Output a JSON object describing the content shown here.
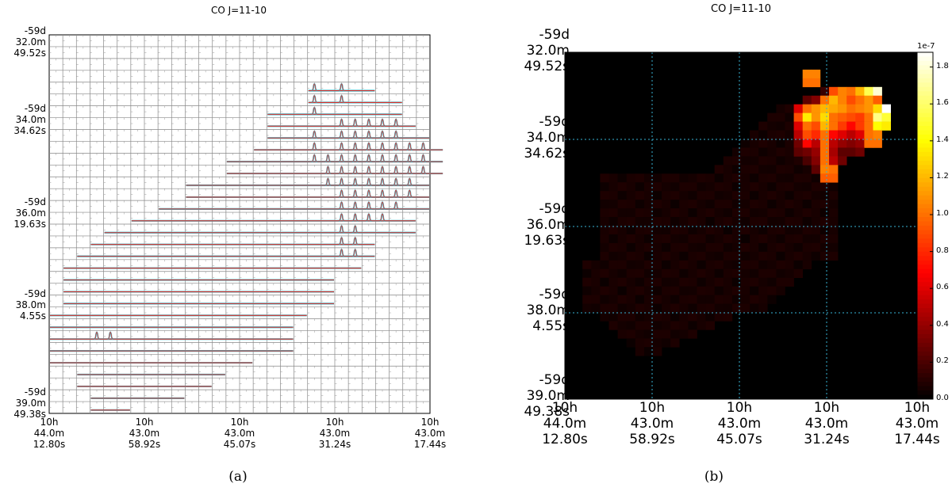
{
  "chart_data": [
    {
      "type": "grid-spectra",
      "title": "CO J=11-10",
      "caption": "(a)",
      "yticks": [
        "-59d\n32.0m\n49.52s",
        "-59d\n34.0m\n34.62s",
        "-59d\n36.0m\n19.63s",
        "-59d\n38.0m\n4.55s",
        "-59d\n39.0m\n49.38s"
      ],
      "xticks": [
        "10h\n44.0m\n12.80s",
        "10h\n43.0m\n58.92s",
        "10h\n43.0m\n45.07s",
        "10h\n43.0m\n31.24s",
        "10h\n43.0m\n17.44s"
      ],
      "grid": true,
      "rows": [
        {
          "row": 4,
          "col_start": 19,
          "col_end": 23,
          "peak_cols": [
            19,
            21
          ]
        },
        {
          "row": 5,
          "col_start": 19,
          "col_end": 25,
          "peak_cols": [
            19,
            21
          ]
        },
        {
          "row": 6,
          "col_start": 16,
          "col_end": 25,
          "peak_cols": [
            19
          ]
        },
        {
          "row": 7,
          "col_start": 16,
          "col_end": 26,
          "peak_cols": [
            21,
            22,
            23,
            24,
            25
          ]
        },
        {
          "row": 8,
          "col_start": 16,
          "col_end": 27,
          "peak_cols": [
            19,
            21,
            22,
            23,
            24,
            25
          ]
        },
        {
          "row": 9,
          "col_start": 15,
          "col_end": 28,
          "peak_cols": [
            19,
            21,
            22,
            23,
            24,
            25,
            26,
            27
          ]
        },
        {
          "row": 10,
          "col_start": 13,
          "col_end": 28,
          "peak_cols": [
            19,
            20,
            21,
            22,
            23,
            24,
            25,
            26,
            27
          ]
        },
        {
          "row": 11,
          "col_start": 13,
          "col_end": 28,
          "peak_cols": [
            20,
            21,
            22,
            23,
            24,
            25,
            26,
            27
          ]
        },
        {
          "row": 12,
          "col_start": 10,
          "col_end": 27,
          "peak_cols": [
            20,
            21,
            22,
            23,
            24,
            25,
            26
          ]
        },
        {
          "row": 13,
          "col_start": 10,
          "col_end": 27,
          "peak_cols": [
            21,
            22,
            23,
            24,
            25,
            26
          ]
        },
        {
          "row": 14,
          "col_start": 8,
          "col_end": 27,
          "peak_cols": [
            21,
            22,
            23,
            24,
            25
          ]
        },
        {
          "row": 15,
          "col_start": 6,
          "col_end": 26,
          "peak_cols": [
            21,
            22,
            23,
            24
          ]
        },
        {
          "row": 16,
          "col_start": 4,
          "col_end": 26,
          "peak_cols": [
            21,
            22
          ]
        },
        {
          "row": 17,
          "col_start": 3,
          "col_end": 23,
          "peak_cols": [
            21,
            22
          ]
        },
        {
          "row": 18,
          "col_start": 2,
          "col_end": 23,
          "peak_cols": [
            21,
            22
          ]
        },
        {
          "row": 19,
          "col_start": 1,
          "col_end": 22,
          "peak_cols": []
        },
        {
          "row": 20,
          "col_start": 1,
          "col_end": 20,
          "peak_cols": []
        },
        {
          "row": 21,
          "col_start": 1,
          "col_end": 20,
          "peak_cols": []
        },
        {
          "row": 22,
          "col_start": 1,
          "col_end": 20,
          "peak_cols": []
        },
        {
          "row": 23,
          "col_start": 0,
          "col_end": 18,
          "peak_cols": []
        },
        {
          "row": 24,
          "col_start": 0,
          "col_end": 17,
          "peak_cols": []
        },
        {
          "row": 25,
          "col_start": 0,
          "col_end": 17,
          "peak_cols": [
            3,
            4
          ]
        },
        {
          "row": 26,
          "col_start": 0,
          "col_end": 17,
          "peak_cols": []
        },
        {
          "row": 27,
          "col_start": 0,
          "col_end": 14,
          "peak_cols": []
        },
        {
          "row": 28,
          "col_start": 2,
          "col_end": 12,
          "peak_cols": []
        },
        {
          "row": 29,
          "col_start": 2,
          "col_end": 11,
          "peak_cols": []
        },
        {
          "row": 30,
          "col_start": 3,
          "col_end": 9,
          "peak_cols": []
        },
        {
          "row": 31,
          "col_start": 3,
          "col_end": 5,
          "peak_cols": []
        }
      ]
    },
    {
      "type": "heatmap",
      "title": "CO J=11-10",
      "caption": "(b)",
      "colormap": "hot",
      "colorbar_exponent": "1e-7",
      "colorbar_ticks": [
        "1.8",
        "1.6",
        "1.4",
        "1.2",
        "1.0",
        "0.8",
        "0.6",
        "0.4",
        "0.2",
        "0.0"
      ],
      "colorbar_range": [
        0.0,
        1.88
      ],
      "yticks": [
        "-59d\n32.0m\n49.52s",
        "-59d\n34.0m\n34.62s",
        "-59d\n36.0m\n19.63s",
        "-59d\n38.0m\n4.55s",
        "-59d\n39.0m\n49.38s"
      ],
      "xticks": [
        "10h\n44.0m\n12.80s",
        "10h\n43.0m\n58.92s",
        "10h\n43.0m\n45.07s",
        "10h\n43.0m\n31.24s",
        "10h\n43.0m\n17.44s"
      ],
      "grid": true,
      "bright_cells": [
        {
          "col": 27,
          "row": 2,
          "value": 1.05
        },
        {
          "col": 28,
          "row": 2,
          "value": 1.05
        },
        {
          "col": 27,
          "row": 3,
          "value": 1.0
        },
        {
          "col": 28,
          "row": 3,
          "value": 1.0
        },
        {
          "col": 29,
          "row": 4,
          "value": 0.15
        },
        {
          "col": 30,
          "row": 4,
          "value": 0.9
        },
        {
          "col": 31,
          "row": 4,
          "value": 1.05
        },
        {
          "col": 32,
          "row": 4,
          "value": 1.0
        },
        {
          "col": 33,
          "row": 4,
          "value": 1.2
        },
        {
          "col": 34,
          "row": 4,
          "value": 1.55
        },
        {
          "col": 35,
          "row": 4,
          "value": 1.8
        },
        {
          "col": 27,
          "row": 5,
          "value": 0.25
        },
        {
          "col": 28,
          "row": 5,
          "value": 0.35
        },
        {
          "col": 29,
          "row": 5,
          "value": 1.0
        },
        {
          "col": 30,
          "row": 5,
          "value": 1.2
        },
        {
          "col": 31,
          "row": 5,
          "value": 1.05
        },
        {
          "col": 32,
          "row": 5,
          "value": 0.9
        },
        {
          "col": 33,
          "row": 5,
          "value": 1.0
        },
        {
          "col": 34,
          "row": 5,
          "value": 1.1
        },
        {
          "col": 35,
          "row": 5,
          "value": 0.95
        },
        {
          "col": 26,
          "row": 6,
          "value": 0.6
        },
        {
          "col": 27,
          "row": 6,
          "value": 1.0
        },
        {
          "col": 28,
          "row": 6,
          "value": 1.1
        },
        {
          "col": 29,
          "row": 6,
          "value": 1.2
        },
        {
          "col": 30,
          "row": 6,
          "value": 1.15
        },
        {
          "col": 31,
          "row": 6,
          "value": 1.1
        },
        {
          "col": 32,
          "row": 6,
          "value": 1.0
        },
        {
          "col": 33,
          "row": 6,
          "value": 1.05
        },
        {
          "col": 34,
          "row": 6,
          "value": 1.1
        },
        {
          "col": 35,
          "row": 6,
          "value": 1.3
        },
        {
          "col": 36,
          "row": 6,
          "value": 1.88
        },
        {
          "col": 26,
          "row": 7,
          "value": 0.9
        },
        {
          "col": 27,
          "row": 7,
          "value": 1.35
        },
        {
          "col": 28,
          "row": 7,
          "value": 1.1
        },
        {
          "col": 29,
          "row": 7,
          "value": 1.3
        },
        {
          "col": 30,
          "row": 7,
          "value": 1.0
        },
        {
          "col": 31,
          "row": 7,
          "value": 0.95
        },
        {
          "col": 32,
          "row": 7,
          "value": 0.9
        },
        {
          "col": 33,
          "row": 7,
          "value": 0.85
        },
        {
          "col": 34,
          "row": 7,
          "value": 1.0
        },
        {
          "col": 35,
          "row": 7,
          "value": 1.65
        },
        {
          "col": 36,
          "row": 7,
          "value": 1.5
        },
        {
          "col": 26,
          "row": 8,
          "value": 0.6
        },
        {
          "col": 27,
          "row": 8,
          "value": 1.0
        },
        {
          "col": 28,
          "row": 8,
          "value": 0.9
        },
        {
          "col": 29,
          "row": 8,
          "value": 1.2
        },
        {
          "col": 30,
          "row": 8,
          "value": 1.0
        },
        {
          "col": 31,
          "row": 8,
          "value": 0.85
        },
        {
          "col": 32,
          "row": 8,
          "value": 0.7
        },
        {
          "col": 33,
          "row": 8,
          "value": 0.85
        },
        {
          "col": 34,
          "row": 8,
          "value": 1.0
        },
        {
          "col": 35,
          "row": 8,
          "value": 1.4
        },
        {
          "col": 36,
          "row": 8,
          "value": 1.35
        },
        {
          "col": 26,
          "row": 9,
          "value": 0.5
        },
        {
          "col": 27,
          "row": 9,
          "value": 0.9
        },
        {
          "col": 28,
          "row": 9,
          "value": 0.8
        },
        {
          "col": 29,
          "row": 9,
          "value": 1.0
        },
        {
          "col": 30,
          "row": 9,
          "value": 0.7
        },
        {
          "col": 31,
          "row": 9,
          "value": 0.6
        },
        {
          "col": 32,
          "row": 9,
          "value": 0.5
        },
        {
          "col": 33,
          "row": 9,
          "value": 0.6
        },
        {
          "col": 34,
          "row": 9,
          "value": 1.0
        },
        {
          "col": 35,
          "row": 9,
          "value": 1.05
        },
        {
          "col": 26,
          "row": 10,
          "value": 0.3
        },
        {
          "col": 27,
          "row": 10,
          "value": 0.7
        },
        {
          "col": 28,
          "row": 10,
          "value": 0.5
        },
        {
          "col": 29,
          "row": 10,
          "value": 1.0
        },
        {
          "col": 30,
          "row": 10,
          "value": 0.5
        },
        {
          "col": 31,
          "row": 10,
          "value": 0.4
        },
        {
          "col": 32,
          "row": 10,
          "value": 0.35
        },
        {
          "col": 33,
          "row": 10,
          "value": 0.4
        },
        {
          "col": 34,
          "row": 10,
          "value": 1.0
        },
        {
          "col": 35,
          "row": 10,
          "value": 1.0
        },
        {
          "col": 26,
          "row": 11,
          "value": 0.25
        },
        {
          "col": 27,
          "row": 11,
          "value": 0.3
        },
        {
          "col": 28,
          "row": 11,
          "value": 0.4
        },
        {
          "col": 29,
          "row": 11,
          "value": 1.0
        },
        {
          "col": 30,
          "row": 11,
          "value": 0.45
        },
        {
          "col": 31,
          "row": 11,
          "value": 0.25
        },
        {
          "col": 32,
          "row": 11,
          "value": 0.25
        },
        {
          "col": 33,
          "row": 11,
          "value": 0.3
        },
        {
          "col": 27,
          "row": 12,
          "value": 0.2
        },
        {
          "col": 28,
          "row": 12,
          "value": 0.35
        },
        {
          "col": 29,
          "row": 12,
          "value": 1.0
        },
        {
          "col": 30,
          "row": 12,
          "value": 0.5
        },
        {
          "col": 31,
          "row": 12,
          "value": 0.3
        },
        {
          "col": 28,
          "row": 13,
          "value": 0.25
        },
        {
          "col": 29,
          "row": 13,
          "value": 1.05
        },
        {
          "col": 30,
          "row": 13,
          "value": 1.0
        },
        {
          "col": 29,
          "row": 14,
          "value": 0.95
        },
        {
          "col": 30,
          "row": 14,
          "value": 0.95
        }
      ]
    }
  ]
}
